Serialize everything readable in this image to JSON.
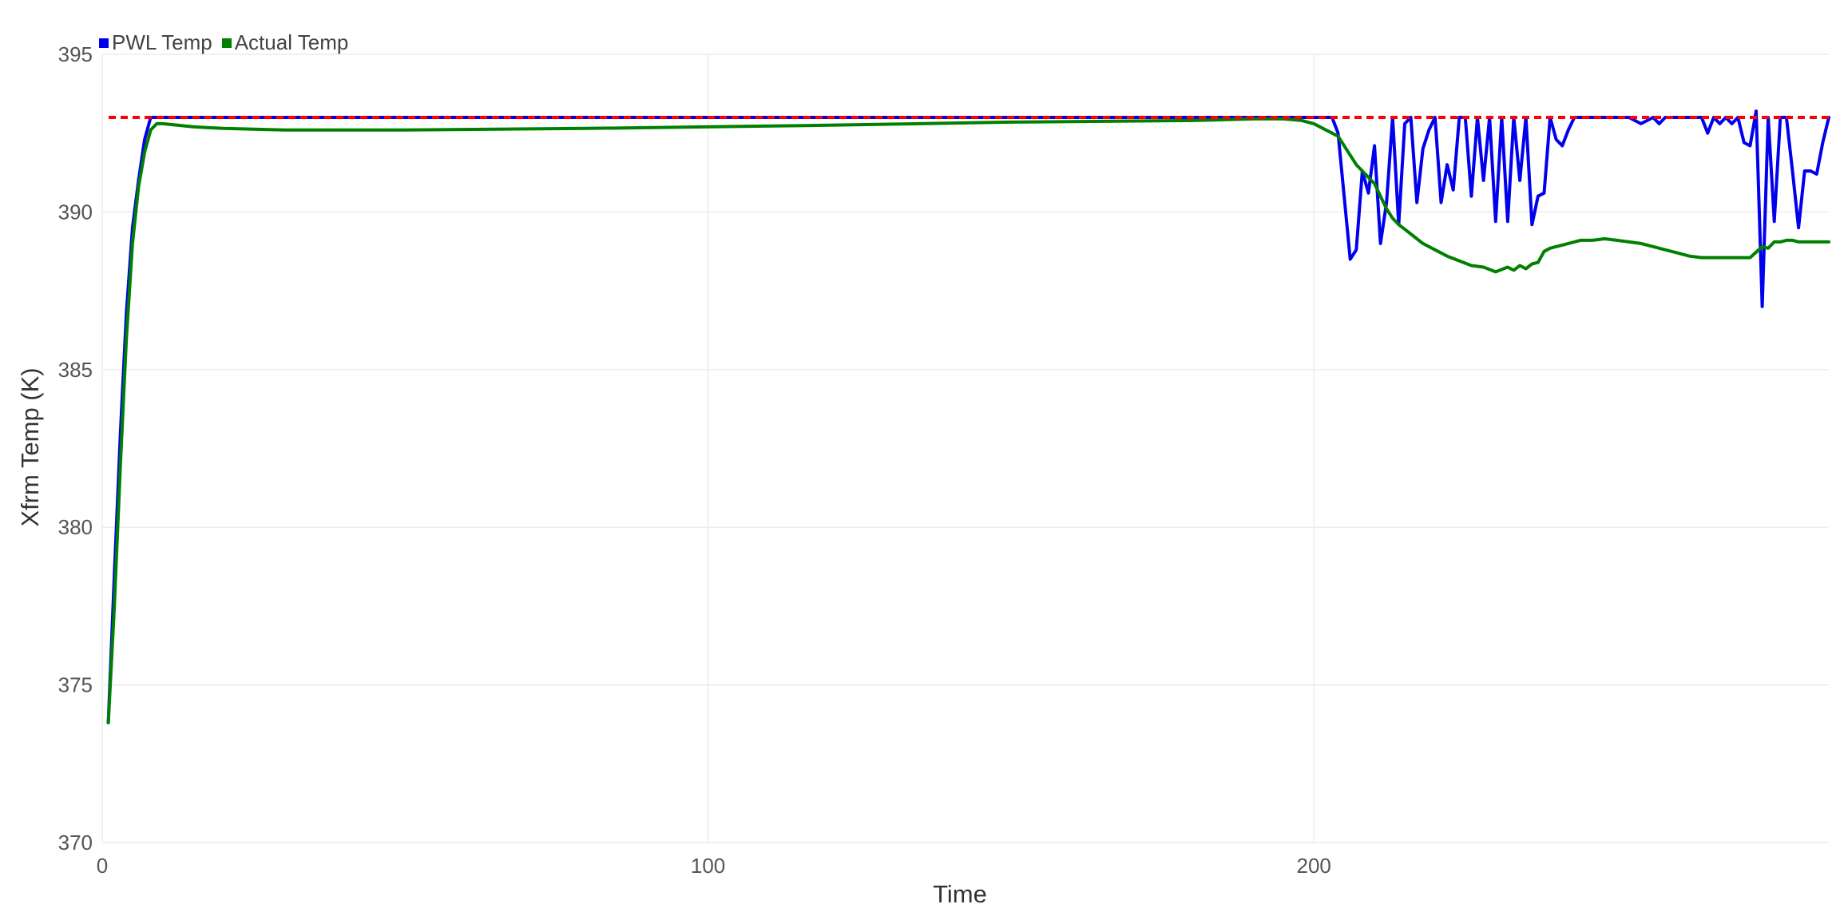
{
  "chart_data": {
    "type": "line",
    "xlabel": "Time",
    "ylabel": "Xfrm Temp (K)",
    "xlim": [
      0,
      285
    ],
    "ylim": [
      370,
      395
    ],
    "x_ticks": [
      0,
      100,
      200
    ],
    "y_ticks": [
      370,
      375,
      380,
      385,
      390,
      395
    ],
    "grid": true,
    "legend_position": "top-left",
    "reference_line": {
      "y": 393,
      "color": "#ff0000",
      "style": "dashed"
    },
    "series": [
      {
        "name": "PWL Temp",
        "color": "#0000ee",
        "x": [
          1,
          2,
          3,
          4,
          5,
          6,
          7,
          8,
          9,
          10,
          30,
          60,
          100,
          150,
          180,
          195,
          200,
          202,
          203,
          204,
          205,
          206,
          207,
          208,
          209,
          210,
          211,
          212,
          213,
          214,
          215,
          216,
          217,
          218,
          219,
          220,
          221,
          222,
          223,
          224,
          225,
          226,
          227,
          228,
          229,
          230,
          231,
          232,
          233,
          234,
          235,
          236,
          237,
          238,
          239,
          240,
          241,
          242,
          243,
          244,
          245,
          246,
          247,
          248,
          250,
          252,
          254,
          256,
          257,
          258,
          259,
          260,
          262,
          264,
          265,
          266,
          267,
          268,
          269,
          270,
          271,
          272,
          273,
          274,
          275,
          276,
          277,
          278,
          279,
          280,
          281,
          282,
          283,
          284,
          285
        ],
        "values": [
          373.8,
          378.5,
          383.0,
          386.8,
          389.5,
          391.0,
          392.3,
          393.0,
          393.0,
          393.0,
          393.0,
          393.0,
          393.0,
          393.0,
          393.0,
          393.0,
          393.0,
          393.0,
          393.0,
          392.5,
          390.5,
          388.5,
          388.8,
          391.3,
          390.6,
          392.1,
          389.0,
          390.3,
          393.0,
          389.6,
          392.8,
          393.0,
          390.3,
          392.0,
          392.6,
          393.0,
          390.3,
          391.5,
          390.7,
          393.0,
          393.0,
          390.5,
          393.0,
          391.0,
          393.0,
          389.7,
          393.0,
          389.7,
          393.0,
          391.0,
          393.0,
          389.6,
          390.5,
          390.6,
          393.0,
          392.3,
          392.1,
          392.6,
          393.0,
          393.0,
          393.0,
          393.0,
          393.0,
          393.0,
          393.0,
          393.0,
          392.8,
          393.0,
          392.8,
          393.0,
          393.0,
          393.0,
          393.0,
          393.0,
          392.5,
          393.0,
          392.8,
          393.0,
          392.8,
          393.0,
          392.2,
          392.1,
          393.2,
          387.0,
          393.0,
          389.7,
          393.0,
          393.0,
          391.3,
          389.5,
          391.3,
          391.3,
          391.2,
          392.2,
          393.0
        ]
      },
      {
        "name": "Actual Temp",
        "color": "#008000",
        "x": [
          1,
          2,
          3,
          4,
          5,
          6,
          7,
          8,
          9,
          10,
          15,
          20,
          30,
          50,
          80,
          120,
          150,
          180,
          190,
          195,
          198,
          200,
          202,
          203,
          204,
          205,
          206,
          207,
          208,
          209,
          210,
          211,
          212,
          213,
          214,
          215,
          216,
          218,
          220,
          222,
          224,
          226,
          228,
          230,
          232,
          233,
          234,
          235,
          236,
          237,
          238,
          239,
          240,
          241,
          242,
          243,
          244,
          245,
          246,
          248,
          250,
          252,
          254,
          256,
          258,
          260,
          262,
          264,
          266,
          268,
          270,
          272,
          274,
          275,
          276,
          277,
          278,
          279,
          280,
          282,
          285
        ],
        "values": [
          373.8,
          377.5,
          382.0,
          386.0,
          389.0,
          390.8,
          391.9,
          392.6,
          392.8,
          392.8,
          392.7,
          392.65,
          392.6,
          392.6,
          392.65,
          392.75,
          392.85,
          392.9,
          392.95,
          392.95,
          392.9,
          392.8,
          392.6,
          392.5,
          392.4,
          392.1,
          391.8,
          391.5,
          391.3,
          391.1,
          390.9,
          390.5,
          390.1,
          389.8,
          389.6,
          389.45,
          389.3,
          389.0,
          388.8,
          388.6,
          388.45,
          388.3,
          388.25,
          388.1,
          388.25,
          388.15,
          388.3,
          388.2,
          388.35,
          388.4,
          388.75,
          388.85,
          388.9,
          388.95,
          389.0,
          389.05,
          389.1,
          389.1,
          389.1,
          389.15,
          389.1,
          389.05,
          389.0,
          388.9,
          388.8,
          388.7,
          388.6,
          388.55,
          388.55,
          388.55,
          388.55,
          388.55,
          388.9,
          388.85,
          389.05,
          389.05,
          389.1,
          389.1,
          389.05,
          389.05,
          389.05
        ]
      }
    ]
  }
}
